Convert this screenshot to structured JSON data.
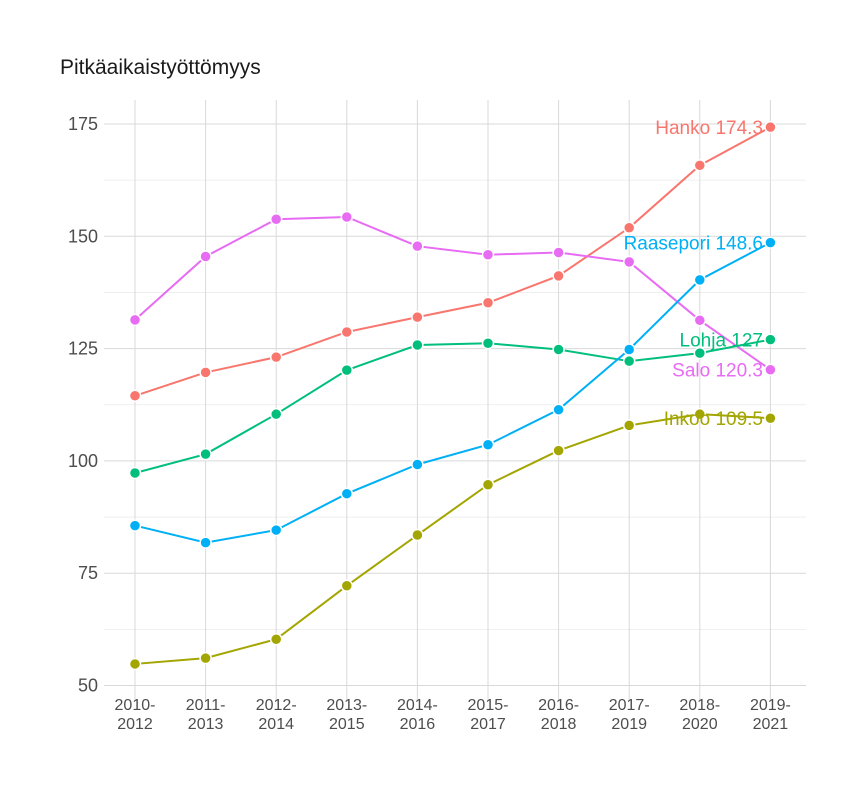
{
  "chart_data": {
    "type": "line",
    "title": "Pitkäaikaistyöttömyys",
    "xlabel": "",
    "ylabel": "",
    "ylim": [
      50,
      180
    ],
    "yticks": [
      50,
      75,
      100,
      125,
      150,
      175
    ],
    "grid": true,
    "categories": [
      [
        "2010-",
        "2012"
      ],
      [
        "2011-",
        "2013"
      ],
      [
        "2012-",
        "2014"
      ],
      [
        "2013-",
        "2015"
      ],
      [
        "2014-",
        "2016"
      ],
      [
        "2015-",
        "2017"
      ],
      [
        "2016-",
        "2018"
      ],
      [
        "2017-",
        "2019"
      ],
      [
        "2018-",
        "2020"
      ],
      [
        "2019-",
        "2021"
      ]
    ],
    "series": [
      {
        "name": "Hanko",
        "color": "#F8766D",
        "label": "Hanko 174.3",
        "values": [
          114.5,
          119.7,
          123.1,
          128.7,
          132,
          135.2,
          141.2,
          151.9,
          165.8,
          174.3
        ]
      },
      {
        "name": "Salo",
        "color": "#E76BF3",
        "label": "Salo 120.3",
        "values": [
          131.4,
          145.5,
          153.8,
          154.3,
          147.8,
          145.9,
          146.4,
          144.3,
          131.3,
          120.3
        ]
      },
      {
        "name": "Lohja",
        "color": "#00BF7D",
        "label": "Lohja 127",
        "values": [
          97.3,
          101.5,
          110.4,
          120.2,
          125.8,
          126.2,
          124.8,
          122.2,
          124,
          127
        ]
      },
      {
        "name": "Raasepori",
        "color": "#00B0F6",
        "label": "Raasepori 148.6",
        "values": [
          85.6,
          81.8,
          84.6,
          92.7,
          99.2,
          103.6,
          111.4,
          124.8,
          140.3,
          148.6
        ]
      },
      {
        "name": "Inkoo",
        "color": "#A3A500",
        "label": "Inkoo 109.5",
        "values": [
          54.8,
          56.1,
          60.3,
          72.2,
          83.5,
          94.7,
          102.3,
          107.9,
          110.4,
          109.5
        ]
      }
    ]
  }
}
